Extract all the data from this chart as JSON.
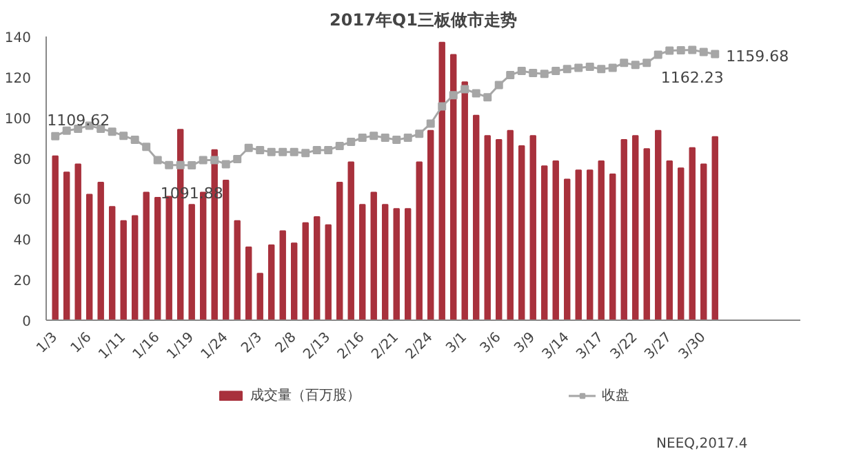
{
  "chart_data": {
    "type": "bar",
    "title": "2017年Q1三板做市走势",
    "categories": [
      "1/3",
      null,
      null,
      "1/6",
      null,
      null,
      "1/11",
      null,
      null,
      "1/16",
      null,
      null,
      "1/19",
      null,
      null,
      "1/24",
      null,
      null,
      "2/3",
      null,
      null,
      "2/8",
      null,
      null,
      "2/13",
      null,
      null,
      "2/16",
      null,
      null,
      "2/21",
      null,
      null,
      "2/24",
      null,
      null,
      "3/1",
      null,
      null,
      "3/6",
      null,
      null,
      "3/9",
      null,
      null,
      "3/14",
      null,
      null,
      "3/17",
      null,
      null,
      "3/22",
      null,
      null,
      "3/27",
      null,
      null,
      "3/30",
      null
    ],
    "series": [
      {
        "name": "成交量（百万股）",
        "color": "#a8313c",
        "values": [
          81,
          73,
          77,
          62,
          68,
          56,
          49,
          51.5,
          63,
          60.5,
          61,
          94,
          57,
          63,
          84,
          69,
          49,
          36,
          23,
          37,
          44,
          38,
          48,
          51,
          47,
          68,
          78,
          57,
          63,
          57,
          55,
          55,
          78,
          93.5,
          137,
          131,
          117.5,
          101,
          91,
          89,
          93.5,
          86,
          91,
          76,
          78.5,
          69.5,
          74,
          74,
          78.5,
          72,
          89,
          91,
          84.5,
          93.5,
          78.5,
          75,
          85,
          77,
          90.5
        ]
      },
      {
        "name": "收盘",
        "type": "line",
        "axis": "y2",
        "color": "#a6a6a6",
        "marker": "square",
        "values": [
          1109.62,
          1113.0,
          1114.2,
          1116.1,
          1114.2,
          1112.4,
          1109.9,
          1107.4,
          1103.1,
          1095.1,
          1092.0,
          1092.0,
          1091.88,
          1095.1,
          1095.1,
          1092.6,
          1095.7,
          1102.5,
          1101.2,
          1100.0,
          1100.0,
          1100.0,
          1099.4,
          1101.2,
          1101.2,
          1103.7,
          1106.2,
          1108.7,
          1109.9,
          1108.7,
          1107.4,
          1108.7,
          1111.1,
          1117.3,
          1127.8,
          1134.6,
          1138.3,
          1135.8,
          1133.4,
          1140.8,
          1146.9,
          1149.4,
          1148.2,
          1147.6,
          1149.4,
          1150.6,
          1151.3,
          1151.9,
          1150.6,
          1151.3,
          1154.3,
          1153.1,
          1154.3,
          1159.3,
          1161.8,
          1162.0,
          1162.23,
          1161.0,
          1159.68
        ],
        "value_labels": [
          "1109.62",
          null,
          null,
          null,
          null,
          null,
          null,
          null,
          null,
          null,
          null,
          null,
          "1091.88",
          null,
          null,
          null,
          null,
          null,
          null,
          null,
          null,
          null,
          null,
          null,
          null,
          null,
          null,
          null,
          null,
          null,
          null,
          null,
          null,
          null,
          null,
          null,
          null,
          null,
          null,
          null,
          null,
          null,
          null,
          null,
          null,
          null,
          null,
          null,
          null,
          null,
          null,
          null,
          null,
          null,
          null,
          null,
          "1162.23",
          null,
          "1159.68"
        ]
      }
    ],
    "ylim": [
      0,
      140
    ],
    "yticks": [
      0,
      20,
      40,
      60,
      80,
      100,
      120,
      140
    ],
    "y2lim": [
      997.5,
      1170.4
    ],
    "grid": false,
    "legend": "bottom",
    "annotations": [
      "NEEQ,2017.4"
    ]
  }
}
